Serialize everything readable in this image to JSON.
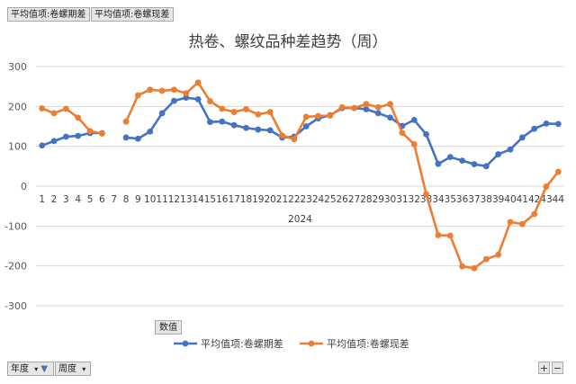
{
  "filter_buttons": {
    "series_a": "平均值项:卷螺期差",
    "series_b": "平均值项:卷螺现差",
    "values": "数值",
    "year": "年度",
    "week": "周度",
    "plus": "+",
    "minus": "−"
  },
  "chart_data": {
    "type": "line",
    "title": "热卷、螺纹品种差趋势（周）",
    "group_label": "2024",
    "ylim": [
      -300,
      300
    ],
    "yticks": [
      300,
      200,
      100,
      0,
      -100,
      -200,
      -300
    ],
    "categories": [
      "1",
      "2",
      "3",
      "4",
      "5",
      "6",
      "7",
      "8",
      "9",
      "10",
      "11",
      "12",
      "13",
      "14",
      "15",
      "16",
      "17",
      "18",
      "19",
      "20",
      "21",
      "22",
      "23",
      "24",
      "25",
      "26",
      "27",
      "28",
      "29",
      "30",
      "31",
      "32",
      "33",
      "34",
      "35",
      "36",
      "37",
      "38",
      "39",
      "40",
      "41",
      "42",
      "43",
      "44"
    ],
    "grid": true,
    "legend_position": "bottom",
    "series": [
      {
        "name": "平均值项:卷螺期差",
        "color": "#4472c4",
        "values": [
          102,
          113,
          124,
          126,
          133,
          133,
          null,
          122,
          119,
          137,
          183,
          214,
          222,
          218,
          161,
          162,
          153,
          146,
          142,
          140,
          122,
          124,
          150,
          170,
          178,
          196,
          196,
          193,
          183,
          172,
          151,
          166,
          130,
          56,
          73,
          64,
          55,
          50,
          80,
          92,
          122,
          144,
          157,
          156
        ]
      },
      {
        "name": "平均值项:卷螺现差",
        "color": "#ed7d31",
        "values": [
          195,
          183,
          194,
          172,
          138,
          132,
          null,
          162,
          228,
          242,
          239,
          242,
          233,
          260,
          213,
          194,
          186,
          193,
          180,
          186,
          127,
          118,
          174,
          176,
          177,
          198,
          196,
          206,
          198,
          206,
          134,
          105,
          -20,
          -123,
          -124,
          -201,
          -206,
          -183,
          -172,
          -90,
          -95,
          -70,
          -1,
          36
        ]
      }
    ]
  }
}
